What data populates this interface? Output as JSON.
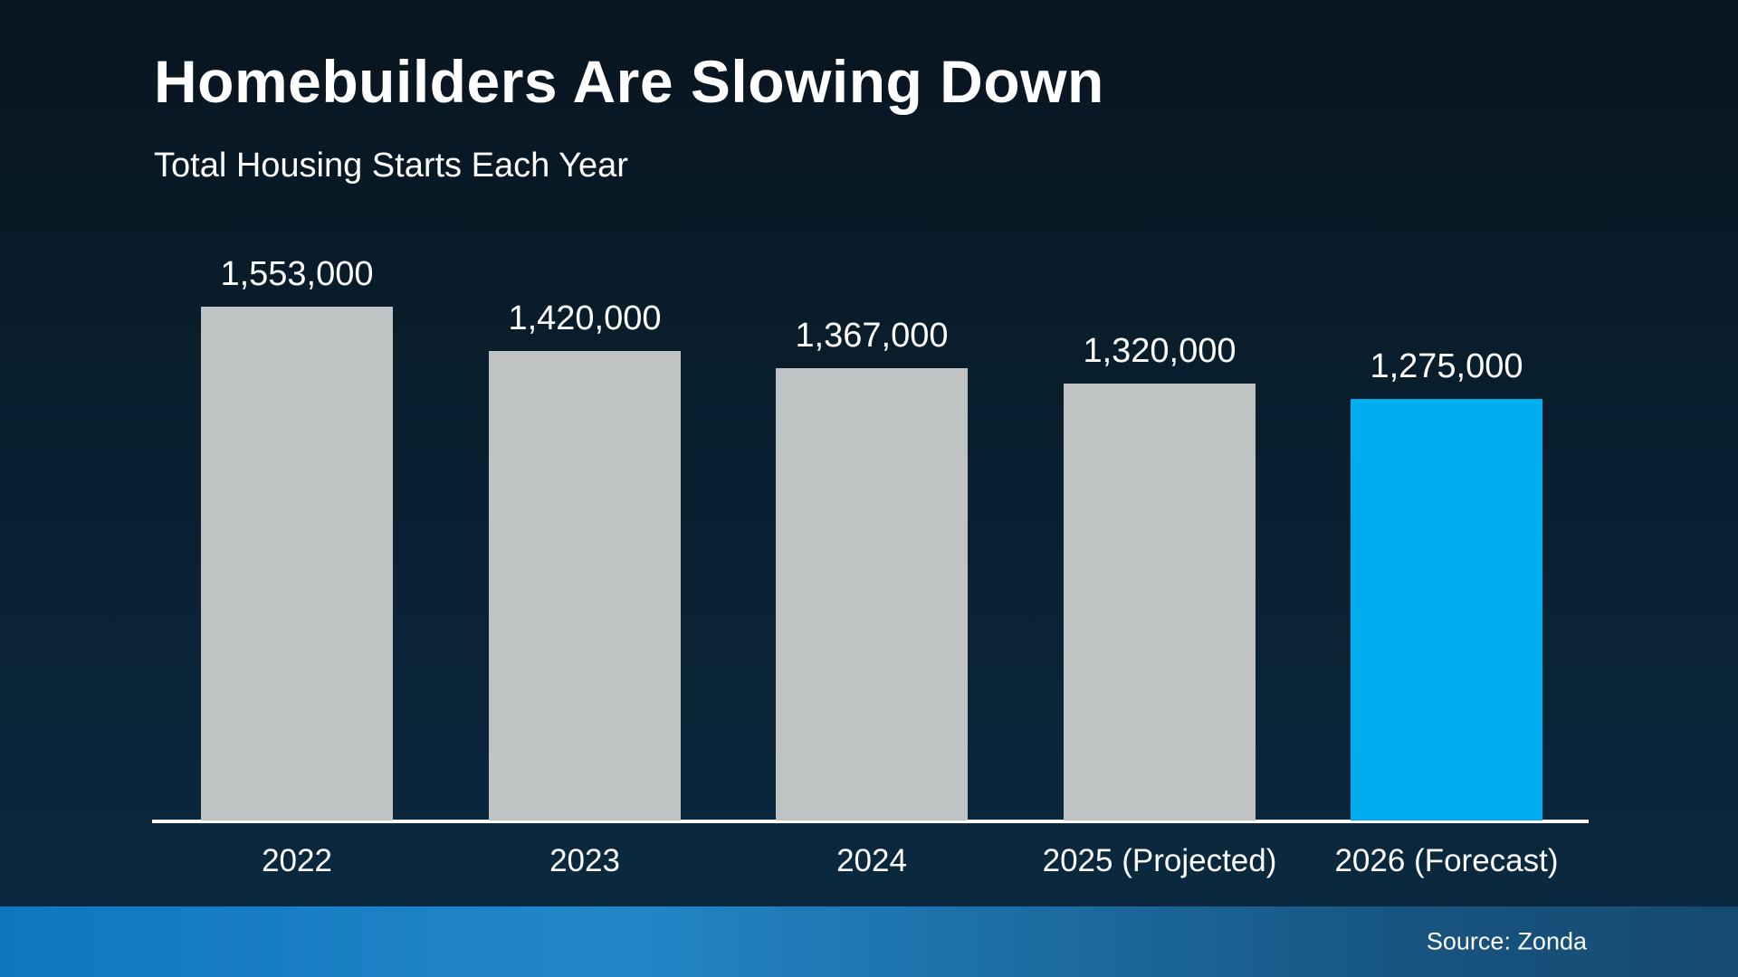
{
  "header": {
    "title": "Homebuilders Are Slowing Down",
    "subtitle": "Total Housing Starts Each Year"
  },
  "footer": {
    "source": "Source: Zonda"
  },
  "colors": {
    "bar_default": "#bfc3c4",
    "bar_highlight": "#00aeef",
    "axis": "#ffffff",
    "text": "#ffffff",
    "background_top": "#081520",
    "background_bottom": "#0a2a42",
    "footer_band_left": "#1076be",
    "footer_band_mid": "#2287c9",
    "footer_band_right": "#154a71"
  },
  "chart_data": {
    "type": "bar",
    "title": "Homebuilders Are Slowing Down",
    "subtitle": "Total Housing Starts Each Year",
    "categories": [
      "2022",
      "2023",
      "2024",
      "2025 (Projected)",
      "2026 (Forecast)"
    ],
    "values": [
      1553000,
      1420000,
      1367000,
      1320000,
      1275000
    ],
    "value_labels": [
      "1,553,000",
      "1,420,000",
      "1,367,000",
      "1,320,000",
      "1,275,000"
    ],
    "highlight_index": 4,
    "xlabel": "",
    "ylabel": "",
    "ylim": [
      0,
      1553000
    ],
    "grid": false,
    "legend": false,
    "source": "Source: Zonda"
  }
}
